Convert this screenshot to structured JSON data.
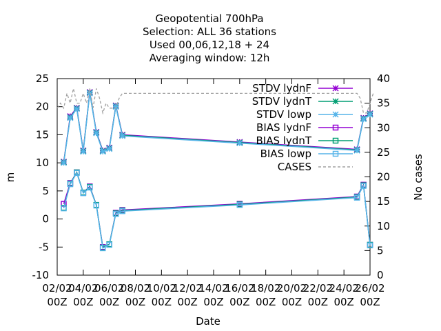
{
  "chart_data": {
    "type": "line",
    "title_lines": [
      "Geopotential 700hPa",
      "Selection: ALL      36 stations",
      "Used  00,06,12,18 + 24",
      "Averaging window: 12h"
    ],
    "xlabel": "Date",
    "ylabel": "m",
    "y2label": "No cases",
    "x_tick_labels": [
      [
        "02/02",
        "00Z"
      ],
      [
        "04/02",
        "00Z"
      ],
      [
        "06/02",
        "00Z"
      ],
      [
        "08/02",
        "00Z"
      ],
      [
        "10/02",
        "00Z"
      ],
      [
        "12/02",
        "00Z"
      ],
      [
        "14/02",
        "00Z"
      ],
      [
        "16/02",
        "00Z"
      ],
      [
        "18/02",
        "00Z"
      ],
      [
        "20/02",
        "00Z"
      ],
      [
        "22/02",
        "00Z"
      ],
      [
        "24/02",
        "00Z"
      ],
      [
        "26/02",
        "00Z"
      ]
    ],
    "x_range_days": [
      0,
      24
    ],
    "ylim": [
      -10,
      25
    ],
    "y_ticks": [
      -10,
      -5,
      0,
      5,
      10,
      15,
      20,
      25
    ],
    "y2lim": [
      0,
      40
    ],
    "y2_ticks": [
      0,
      5,
      10,
      15,
      20,
      25,
      30,
      35,
      40
    ],
    "legend_position": "top-right",
    "colors": {
      "lydnF": "#9400d3",
      "lydnT": "#009e73",
      "lowp": "#56b4e9",
      "cases": "#a0a0a0"
    },
    "x": [
      0.5,
      1.0,
      1.5,
      2.0,
      2.5,
      3.0,
      3.5,
      4.0,
      4.5,
      5.0,
      14.0,
      23.0,
      23.5,
      24.0
    ],
    "series": [
      {
        "name": "STDV lydnF",
        "axis": "y",
        "marker": "star",
        "color_key": "lydnF",
        "values": [
          10.2,
          18.3,
          19.8,
          12.2,
          22.6,
          15.5,
          12.2,
          12.7,
          20.2,
          15.0,
          13.7,
          12.4,
          18.0,
          18.8
        ]
      },
      {
        "name": "STDV lydnT",
        "axis": "y",
        "marker": "star",
        "color_key": "lydnT",
        "values": [
          10.1,
          18.1,
          19.7,
          12.1,
          22.5,
          15.4,
          12.1,
          12.6,
          20.1,
          14.9,
          13.6,
          12.3,
          17.9,
          18.7
        ]
      },
      {
        "name": "STDV lowp",
        "axis": "y",
        "marker": "star",
        "color_key": "lowp",
        "values": [
          10.0,
          18.0,
          19.6,
          12.0,
          22.4,
          15.3,
          12.0,
          12.5,
          20.0,
          14.8,
          13.5,
          12.2,
          17.8,
          18.6
        ]
      },
      {
        "name": "BIAS lydnF",
        "axis": "y",
        "marker": "square",
        "color_key": "lydnF",
        "values": [
          2.7,
          6.4,
          8.3,
          4.7,
          5.8,
          2.5,
          -5.0,
          -4.5,
          1.1,
          1.6,
          2.7,
          4.0,
          6.1,
          -4.6
        ]
      },
      {
        "name": "BIAS lydnT",
        "axis": "y",
        "marker": "square",
        "color_key": "lydnT",
        "values": [
          2.0,
          6.3,
          8.3,
          4.7,
          5.7,
          2.5,
          -5.1,
          -4.5,
          1.0,
          1.5,
          2.6,
          3.9,
          6.0,
          -4.6
        ]
      },
      {
        "name": "BIAS lowp",
        "axis": "y",
        "marker": "square",
        "color_key": "lowp",
        "values": [
          1.9,
          6.2,
          8.2,
          4.6,
          5.6,
          2.4,
          -5.2,
          -4.6,
          0.9,
          1.4,
          2.5,
          3.8,
          5.9,
          -4.7
        ]
      },
      {
        "name": "CASES",
        "axis": "y2",
        "marker": "none",
        "color_key": "cases",
        "dashed": true,
        "x": [
          0,
          0.25,
          0.5,
          0.75,
          1.0,
          1.25,
          1.5,
          1.75,
          2.0,
          2.25,
          2.5,
          2.75,
          3.0,
          3.25,
          3.5,
          3.75,
          4.0,
          4.25,
          4.5,
          4.75,
          5.0,
          22.75,
          23.0,
          23.25,
          23.5,
          23.75,
          24.0,
          24.25
        ],
        "values": [
          34,
          35,
          34,
          37,
          35,
          38,
          35,
          35,
          37,
          35,
          38,
          34,
          38,
          36,
          33,
          35,
          34,
          34,
          34,
          36,
          37,
          37,
          37,
          36,
          33,
          33,
          35,
          37
        ]
      }
    ]
  }
}
